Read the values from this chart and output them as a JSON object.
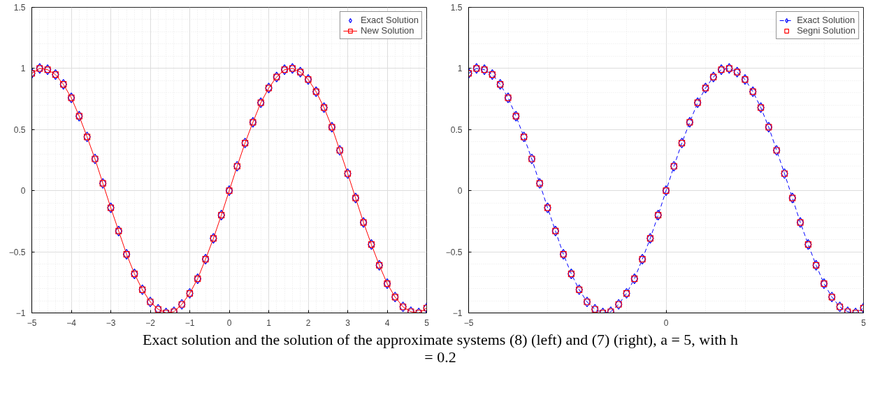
{
  "chart_data": [
    {
      "type": "line",
      "annotations": [
        "Exact solution and the solution of the approximate systems (8) (left) and (7) (right), a = 5, with h = 0.2"
      ],
      "x": [
        -5,
        -4.8,
        -4.6,
        -4.4,
        -4.2,
        -4,
        -3.8,
        -3.6,
        -3.4,
        -3.2,
        -3,
        -2.8,
        -2.6,
        -2.4,
        -2.2,
        -2,
        -1.8,
        -1.6,
        -1.4,
        -1.2,
        -1,
        -0.8,
        -0.6,
        -0.4,
        -0.2,
        0,
        0.2,
        0.4,
        0.6,
        0.8,
        1,
        1.2,
        1.4,
        1.6,
        1.8,
        2,
        2.2,
        2.4,
        2.6,
        2.8,
        3,
        3.2,
        3.4,
        3.6,
        3.8,
        4,
        4.2,
        4.4,
        4.6,
        4.8,
        5
      ],
      "series": [
        {
          "name": "Exact Solution",
          "type": "scatter",
          "marker": "diamond",
          "color": "#0000ff",
          "values": [
            0.96,
            1.0,
            0.99,
            0.95,
            0.87,
            0.76,
            0.61,
            0.44,
            0.26,
            0.06,
            -0.14,
            -0.33,
            -0.52,
            -0.68,
            -0.81,
            -0.91,
            -0.97,
            -1.0,
            -0.99,
            -0.93,
            -0.84,
            -0.72,
            -0.56,
            -0.39,
            -0.2,
            0,
            0.2,
            0.39,
            0.56,
            0.72,
            0.84,
            0.93,
            0.99,
            1.0,
            0.97,
            0.91,
            0.81,
            0.68,
            0.52,
            0.33,
            0.14,
            -0.06,
            -0.26,
            -0.44,
            -0.61,
            -0.76,
            -0.87,
            -0.95,
            -0.99,
            -1.0,
            -0.96
          ]
        },
        {
          "name": "New Solution",
          "marker": "square",
          "line_style": "solid",
          "color": "#ff0000",
          "values": [
            0.96,
            1.0,
            0.99,
            0.95,
            0.87,
            0.76,
            0.61,
            0.44,
            0.26,
            0.06,
            -0.14,
            -0.33,
            -0.52,
            -0.68,
            -0.81,
            -0.91,
            -0.97,
            -1.0,
            -0.99,
            -0.93,
            -0.84,
            -0.72,
            -0.56,
            -0.39,
            -0.2,
            0,
            0.2,
            0.39,
            0.56,
            0.72,
            0.84,
            0.93,
            0.99,
            1.0,
            0.97,
            0.91,
            0.81,
            0.68,
            0.52,
            0.33,
            0.14,
            -0.06,
            -0.26,
            -0.44,
            -0.61,
            -0.76,
            -0.87,
            -0.95,
            -0.99,
            -1.0,
            -0.96
          ]
        }
      ],
      "xlim": [
        -5,
        5
      ],
      "xticks": [
        -5,
        -4,
        -3,
        -2,
        -1,
        0,
        1,
        2,
        3,
        4,
        5
      ],
      "ylim": [
        -1,
        1.5
      ],
      "yticks": [
        -1,
        -0.5,
        0,
        0.5,
        1,
        1.5
      ],
      "grid": true,
      "legend": "top right"
    },
    {
      "type": "line",
      "x": [
        -5,
        -4.8,
        -4.6,
        -4.4,
        -4.2,
        -4,
        -3.8,
        -3.6,
        -3.4,
        -3.2,
        -3,
        -2.8,
        -2.6,
        -2.4,
        -2.2,
        -2,
        -1.8,
        -1.6,
        -1.4,
        -1.2,
        -1,
        -0.8,
        -0.6,
        -0.4,
        -0.2,
        0,
        0.2,
        0.4,
        0.6,
        0.8,
        1,
        1.2,
        1.4,
        1.6,
        1.8,
        2,
        2.2,
        2.4,
        2.6,
        2.8,
        3,
        3.2,
        3.4,
        3.6,
        3.8,
        4,
        4.2,
        4.4,
        4.6,
        4.8,
        5
      ],
      "series": [
        {
          "name": "Exact Solution",
          "marker": "diamond",
          "line_style": "dashed",
          "color": "#0000ff",
          "values": [
            0.96,
            1.0,
            0.99,
            0.95,
            0.87,
            0.76,
            0.61,
            0.44,
            0.26,
            0.06,
            -0.14,
            -0.33,
            -0.52,
            -0.68,
            -0.81,
            -0.91,
            -0.97,
            -1.0,
            -0.99,
            -0.93,
            -0.84,
            -0.72,
            -0.56,
            -0.39,
            -0.2,
            0,
            0.2,
            0.39,
            0.56,
            0.72,
            0.84,
            0.93,
            0.99,
            1.0,
            0.97,
            0.91,
            0.81,
            0.68,
            0.52,
            0.33,
            0.14,
            -0.06,
            -0.26,
            -0.44,
            -0.61,
            -0.76,
            -0.87,
            -0.95,
            -0.99,
            -1.0,
            -0.96
          ]
        },
        {
          "name": "Segni Solution",
          "type": "scatter",
          "marker": "square",
          "color": "#ff0000",
          "values": [
            0.96,
            1.0,
            0.99,
            0.95,
            0.87,
            0.76,
            0.61,
            0.44,
            0.26,
            0.06,
            -0.14,
            -0.33,
            -0.52,
            -0.68,
            -0.81,
            -0.91,
            -0.97,
            -1.0,
            -0.99,
            -0.93,
            -0.84,
            -0.72,
            -0.56,
            -0.39,
            -0.2,
            0,
            0.2,
            0.39,
            0.56,
            0.72,
            0.84,
            0.93,
            0.99,
            1.0,
            0.97,
            0.91,
            0.81,
            0.68,
            0.52,
            0.33,
            0.14,
            -0.06,
            -0.26,
            -0.44,
            -0.61,
            -0.76,
            -0.87,
            -0.95,
            -0.99,
            -1.0,
            -0.96
          ]
        }
      ],
      "xlim": [
        -5,
        5
      ],
      "xticks": [
        -5,
        0,
        5
      ],
      "ylim": [
        -1,
        1.5
      ],
      "yticks": [
        -1,
        -0.5,
        0,
        0.5,
        1,
        1.5
      ],
      "grid": true,
      "legend": "top right"
    }
  ]
}
